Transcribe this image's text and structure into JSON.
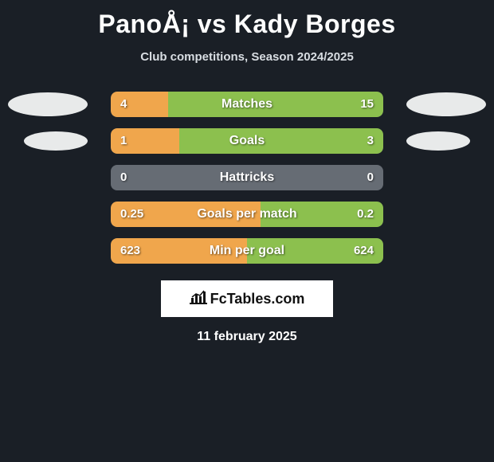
{
  "title": "PanoÅ¡ vs Kady Borges",
  "subtitle": "Club competitions, Season 2024/2025",
  "date": "11 february 2025",
  "logo_text": "FcTables.com",
  "colors": {
    "left_fill": "#f0a64c",
    "right_fill": "#8cc04e",
    "empty_fill": "#666c74",
    "ellipse": "#e8eaea",
    "background": "#1a1f26"
  },
  "rows": [
    {
      "label": "Matches",
      "left_val": "4",
      "right_val": "15",
      "left_pct": 21,
      "right_pct": 79,
      "show_ellipse": true,
      "ellipse_small": false
    },
    {
      "label": "Goals",
      "left_val": "1",
      "right_val": "3",
      "left_pct": 25,
      "right_pct": 75,
      "show_ellipse": true,
      "ellipse_small": true
    },
    {
      "label": "Hattricks",
      "left_val": "0",
      "right_val": "0",
      "left_pct": 0,
      "right_pct": 0,
      "show_ellipse": false,
      "ellipse_small": false
    },
    {
      "label": "Goals per match",
      "left_val": "0.25",
      "right_val": "0.2",
      "left_pct": 55,
      "right_pct": 45,
      "show_ellipse": false,
      "ellipse_small": false
    },
    {
      "label": "Min per goal",
      "left_val": "623",
      "right_val": "624",
      "left_pct": 50,
      "right_pct": 50,
      "show_ellipse": false,
      "ellipse_small": false
    }
  ]
}
